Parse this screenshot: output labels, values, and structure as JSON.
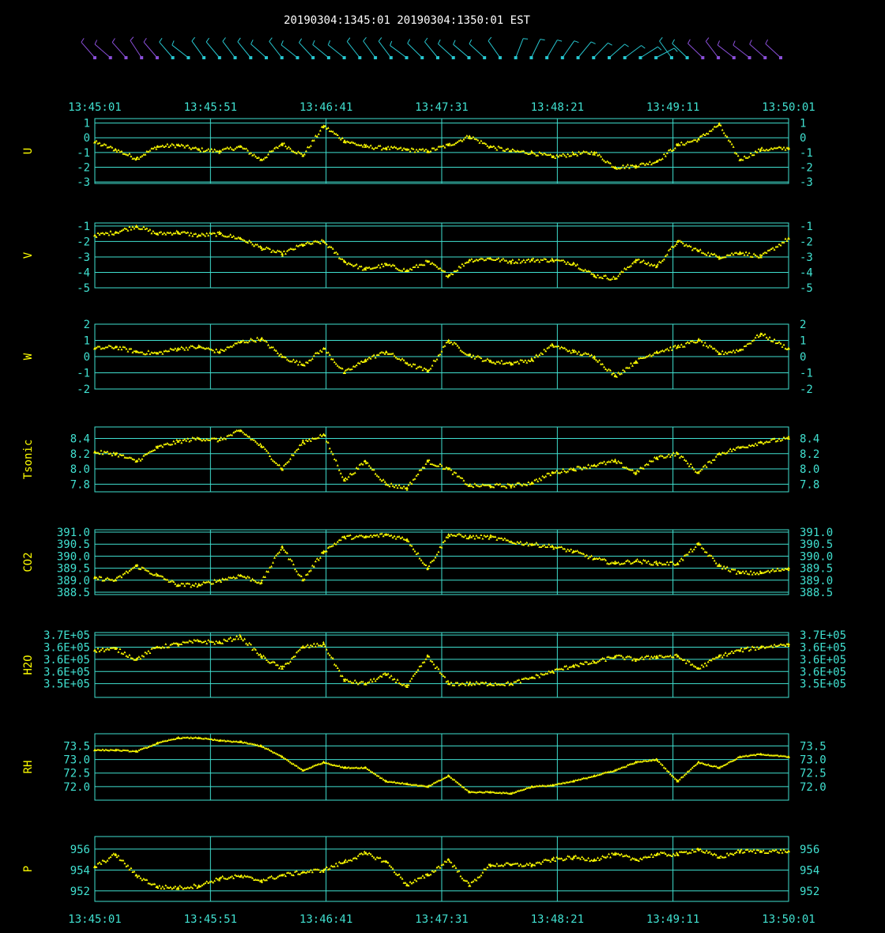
{
  "header": {
    "title": "20190304:1345:01 20190304:1350:01 EST"
  },
  "colors": {
    "background": "#000000",
    "frame": "#40e0d0",
    "tick_text": "#40e0d0",
    "data": "#ffff00",
    "ylabel": "#ffff00",
    "wind_early": "#8a4fd8",
    "wind_mid": "#27c6cf",
    "wind_late": "#8a4fd8"
  },
  "time_axis": {
    "labels": [
      "13:45:01",
      "13:45:51",
      "13:46:41",
      "13:47:31",
      "13:48:21",
      "13:49:11",
      "13:50:01"
    ]
  },
  "wind_barbs": {
    "count": 45,
    "color_groups": [
      "purple",
      "teal",
      "purple"
    ]
  },
  "chart_data": [
    {
      "type": "scatter",
      "ylabel": "U",
      "ylim": [
        -3.1,
        1.3
      ],
      "ticks": [
        1,
        0,
        -1,
        -2,
        -3
      ],
      "tick_labels": [
        "1",
        "0",
        "-1",
        "-2",
        "-3"
      ],
      "x": [
        0,
        0.03,
        0.06,
        0.09,
        0.12,
        0.15,
        0.18,
        0.21,
        0.24,
        0.27,
        0.3,
        0.33,
        0.36,
        0.39,
        0.42,
        0.45,
        0.48,
        0.51,
        0.54,
        0.57,
        0.6,
        0.63,
        0.66,
        0.69,
        0.72,
        0.75,
        0.78,
        0.81,
        0.84,
        0.87,
        0.9,
        0.93,
        0.96,
        1.0
      ],
      "values": [
        -0.3,
        -0.8,
        -1.4,
        -0.6,
        -0.5,
        -0.8,
        -0.9,
        -0.6,
        -1.5,
        -0.4,
        -1.2,
        0.8,
        -0.2,
        -0.6,
        -0.7,
        -0.8,
        -0.9,
        -0.5,
        0.1,
        -0.6,
        -0.9,
        -1.0,
        -1.3,
        -1.1,
        -1.0,
        -2.0,
        -1.9,
        -1.6,
        -0.5,
        -0.1,
        0.9,
        -1.5,
        -0.8,
        -0.7
      ]
    },
    {
      "type": "scatter",
      "ylabel": "V",
      "ylim": [
        -5,
        -0.8
      ],
      "ticks": [
        -1,
        -2,
        -3,
        -4,
        -5
      ],
      "tick_labels": [
        "-1",
        "-2",
        "-3",
        "-4",
        "-5"
      ],
      "x": [
        0,
        0.03,
        0.06,
        0.09,
        0.12,
        0.15,
        0.18,
        0.21,
        0.24,
        0.27,
        0.3,
        0.33,
        0.36,
        0.39,
        0.42,
        0.45,
        0.48,
        0.51,
        0.54,
        0.57,
        0.6,
        0.63,
        0.66,
        0.69,
        0.72,
        0.75,
        0.78,
        0.81,
        0.84,
        0.87,
        0.9,
        0.93,
        0.96,
        1.0
      ],
      "values": [
        -1.6,
        -1.4,
        -1.0,
        -1.5,
        -1.4,
        -1.6,
        -1.5,
        -1.8,
        -2.4,
        -2.8,
        -2.2,
        -2.0,
        -3.3,
        -3.8,
        -3.5,
        -3.9,
        -3.3,
        -4.2,
        -3.2,
        -3.1,
        -3.3,
        -3.2,
        -3.2,
        -3.4,
        -4.2,
        -4.4,
        -3.2,
        -3.6,
        -2.0,
        -2.6,
        -3.0,
        -2.7,
        -3.0,
        -1.8
      ]
    },
    {
      "type": "scatter",
      "ylabel": "W",
      "ylim": [
        -2,
        2
      ],
      "ticks": [
        2,
        1,
        0,
        -1,
        -2
      ],
      "tick_labels": [
        "2",
        "1",
        "0",
        "-1",
        "-2"
      ],
      "x": [
        0,
        0.03,
        0.06,
        0.09,
        0.12,
        0.15,
        0.18,
        0.21,
        0.24,
        0.27,
        0.3,
        0.33,
        0.36,
        0.39,
        0.42,
        0.45,
        0.48,
        0.51,
        0.54,
        0.57,
        0.6,
        0.63,
        0.66,
        0.69,
        0.72,
        0.75,
        0.78,
        0.81,
        0.84,
        0.87,
        0.9,
        0.93,
        0.96,
        1.0
      ],
      "values": [
        0.5,
        0.6,
        0.3,
        0.2,
        0.5,
        0.6,
        0.3,
        0.9,
        1.1,
        0.0,
        -0.5,
        0.5,
        -1.0,
        -0.2,
        0.3,
        -0.4,
        -0.9,
        1.0,
        0.1,
        -0.3,
        -0.4,
        -0.2,
        0.7,
        0.3,
        0.0,
        -1.2,
        -0.3,
        0.3,
        0.6,
        1.0,
        0.2,
        0.4,
        1.4,
        0.5
      ]
    },
    {
      "type": "scatter",
      "ylabel": "Tsonic",
      "ylim": [
        7.7,
        8.55
      ],
      "ticks": [
        8.4,
        8.2,
        8.0,
        7.8
      ],
      "tick_labels": [
        "8.4",
        "8.2",
        "8.0",
        "7.8"
      ],
      "x": [
        0,
        0.03,
        0.06,
        0.09,
        0.12,
        0.15,
        0.18,
        0.21,
        0.24,
        0.27,
        0.3,
        0.33,
        0.36,
        0.39,
        0.42,
        0.45,
        0.48,
        0.51,
        0.54,
        0.57,
        0.6,
        0.63,
        0.66,
        0.69,
        0.72,
        0.75,
        0.78,
        0.81,
        0.84,
        0.87,
        0.9,
        0.93,
        0.96,
        1.0
      ],
      "values": [
        8.22,
        8.2,
        8.1,
        8.28,
        8.36,
        8.4,
        8.38,
        8.5,
        8.3,
        8.0,
        8.35,
        8.45,
        7.85,
        8.1,
        7.8,
        7.75,
        8.1,
        8.0,
        7.78,
        7.78,
        7.78,
        7.82,
        7.95,
        8.0,
        8.05,
        8.1,
        7.95,
        8.15,
        8.2,
        7.95,
        8.2,
        8.28,
        8.35,
        8.4
      ]
    },
    {
      "type": "scatter",
      "ylabel": "CO2",
      "ylim": [
        388.4,
        391.1
      ],
      "ticks": [
        391.0,
        390.5,
        390.0,
        389.5,
        389.0,
        388.5
      ],
      "tick_labels": [
        "391.0",
        "390.5",
        "390.0",
        "389.5",
        "389.0",
        "388.5"
      ],
      "x": [
        0,
        0.03,
        0.06,
        0.09,
        0.12,
        0.15,
        0.18,
        0.21,
        0.24,
        0.27,
        0.3,
        0.33,
        0.36,
        0.39,
        0.42,
        0.45,
        0.48,
        0.51,
        0.54,
        0.57,
        0.6,
        0.63,
        0.66,
        0.69,
        0.72,
        0.75,
        0.78,
        0.81,
        0.84,
        0.87,
        0.9,
        0.93,
        0.96,
        1.0
      ],
      "values": [
        389.1,
        389.0,
        389.6,
        389.2,
        388.8,
        388.8,
        389.0,
        389.2,
        388.9,
        390.4,
        389.0,
        390.2,
        390.8,
        390.8,
        390.9,
        390.7,
        389.5,
        390.9,
        390.8,
        390.8,
        390.6,
        390.5,
        390.4,
        390.2,
        389.9,
        389.7,
        389.8,
        389.7,
        389.7,
        390.5,
        389.6,
        389.3,
        389.3,
        389.5
      ]
    },
    {
      "type": "scatter",
      "ylabel": "H2O",
      "ylim": [
        349500,
        370800
      ],
      "ticks": [
        370000,
        366000,
        362000,
        358000,
        354000
      ],
      "tick_labels": [
        "3.7E+05",
        "3.6E+05",
        "3.6E+05",
        "3.6E+05",
        "3.5E+05"
      ],
      "x": [
        0,
        0.03,
        0.06,
        0.09,
        0.12,
        0.15,
        0.18,
        0.21,
        0.24,
        0.27,
        0.3,
        0.33,
        0.36,
        0.39,
        0.42,
        0.45,
        0.48,
        0.51,
        0.54,
        0.57,
        0.6,
        0.63,
        0.66,
        0.69,
        0.72,
        0.75,
        0.78,
        0.81,
        0.84,
        0.87,
        0.9,
        0.93,
        0.96,
        1.0
      ],
      "values": [
        365000,
        365500,
        362000,
        366000,
        367000,
        368000,
        367500,
        369500,
        363000,
        359000,
        366000,
        367000,
        355000,
        354000,
        357000,
        353000,
        363000,
        354000,
        354000,
        354000,
        354000,
        356000,
        358000,
        360000,
        361000,
        363000,
        362000,
        363000,
        363000,
        359000,
        363000,
        365000,
        366000,
        367000
      ]
    },
    {
      "type": "scatter",
      "ylabel": "RH",
      "ylim": [
        71.5,
        73.95
      ],
      "ticks": [
        73.5,
        73.0,
        72.5,
        72.0
      ],
      "tick_labels": [
        "73.5",
        "73.0",
        "72.5",
        "72.0"
      ],
      "x": [
        0,
        0.03,
        0.06,
        0.09,
        0.12,
        0.15,
        0.18,
        0.21,
        0.24,
        0.27,
        0.3,
        0.33,
        0.36,
        0.39,
        0.42,
        0.45,
        0.48,
        0.51,
        0.54,
        0.57,
        0.6,
        0.63,
        0.66,
        0.69,
        0.72,
        0.75,
        0.78,
        0.81,
        0.84,
        0.87,
        0.9,
        0.93,
        0.96,
        1.0
      ],
      "values": [
        73.35,
        73.35,
        73.3,
        73.6,
        73.8,
        73.8,
        73.7,
        73.65,
        73.5,
        73.1,
        72.6,
        72.9,
        72.7,
        72.7,
        72.2,
        72.1,
        72.0,
        72.4,
        71.8,
        71.8,
        71.75,
        72.0,
        72.05,
        72.2,
        72.4,
        72.6,
        72.9,
        73.0,
        72.2,
        72.9,
        72.7,
        73.1,
        73.2,
        73.1
      ]
    },
    {
      "type": "scatter",
      "ylabel": "P",
      "ylim": [
        951,
        957.2
      ],
      "ticks": [
        956,
        954,
        952
      ],
      "tick_labels": [
        "956",
        "954",
        "952"
      ],
      "x": [
        0,
        0.03,
        0.06,
        0.09,
        0.12,
        0.15,
        0.18,
        0.21,
        0.24,
        0.27,
        0.3,
        0.33,
        0.36,
        0.39,
        0.42,
        0.45,
        0.48,
        0.51,
        0.54,
        0.57,
        0.6,
        0.63,
        0.66,
        0.69,
        0.72,
        0.75,
        0.78,
        0.81,
        0.84,
        0.87,
        0.9,
        0.93,
        0.96,
        1.0
      ],
      "values": [
        954.3,
        955.5,
        953.5,
        952.4,
        952.3,
        952.5,
        953.2,
        953.4,
        953.0,
        953.5,
        953.8,
        954.0,
        954.8,
        955.6,
        954.8,
        952.6,
        953.5,
        955.0,
        952.5,
        954.5,
        954.5,
        954.5,
        955.0,
        955.2,
        955.0,
        955.5,
        955.0,
        955.5,
        955.5,
        956.0,
        955.2,
        955.8,
        955.8,
        955.8
      ]
    }
  ]
}
